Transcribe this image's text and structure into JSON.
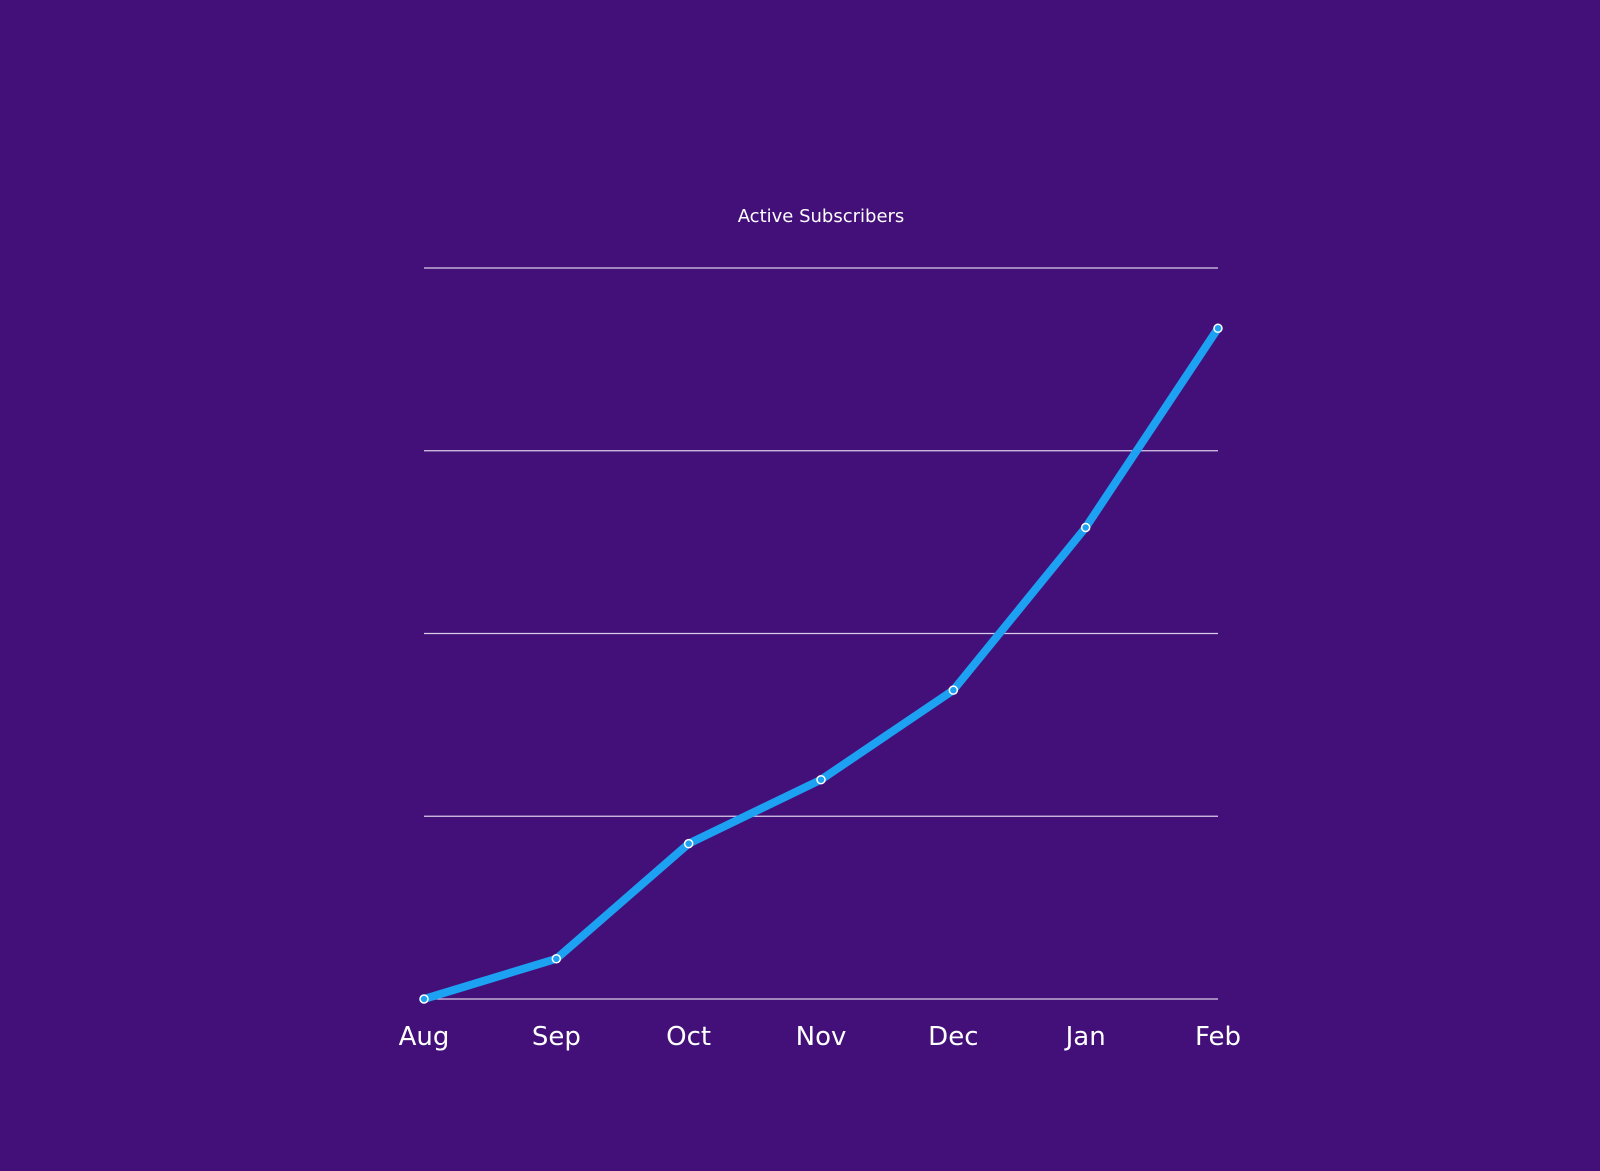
{
  "chart_data": {
    "type": "line",
    "title": "Active Subscribers",
    "xlabel": "",
    "ylabel": "",
    "categories": [
      "Aug",
      "Sep",
      "Oct",
      "Nov",
      "Dec",
      "Jan",
      "Feb"
    ],
    "series": [
      {
        "values": [
          0,
          0.22,
          0.85,
          1.2,
          1.69,
          2.58,
          3.67
        ]
      }
    ],
    "ylim": [
      0,
      4
    ],
    "y_gridlines": [
      0,
      1,
      2,
      3,
      4
    ],
    "grid": true,
    "legend": "none",
    "colors": {
      "background": "#43107a",
      "line": "#1da1f2",
      "grid": "#d9cce8",
      "text": "#ffffff"
    }
  }
}
